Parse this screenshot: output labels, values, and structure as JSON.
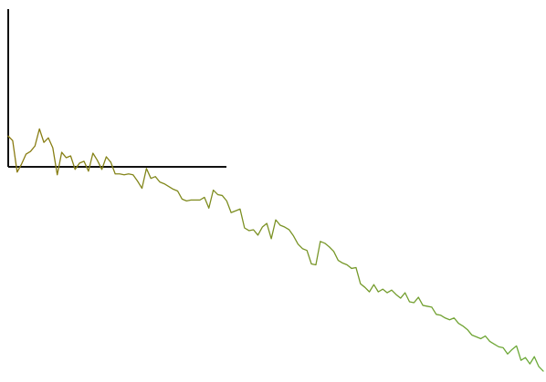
{
  "chart_data": {
    "type": "line",
    "title": "",
    "xlabel": "",
    "ylabel": "",
    "grid": false,
    "legend": "none",
    "xlim": [
      0,
      240
    ],
    "ylim": [
      -230,
      175
    ],
    "colors": {
      "axis": "#111111",
      "gradient_start": "#8a7a10",
      "gradient_end": "#6aaa38"
    },
    "series": [
      {
        "x": [
          0,
          2,
          4,
          6,
          8,
          10,
          12,
          14,
          16,
          18,
          20,
          22,
          24,
          26,
          28,
          30,
          32,
          34,
          36,
          38,
          40,
          42,
          44,
          46,
          48,
          50,
          52,
          54,
          56,
          58,
          60,
          62,
          64,
          66,
          68,
          70,
          72,
          74,
          76,
          78,
          80,
          82,
          84,
          86,
          88,
          90,
          92,
          94,
          96,
          98,
          100,
          102,
          104,
          106,
          108,
          110,
          112,
          114,
          116,
          118,
          120,
          122,
          124,
          126,
          128,
          130,
          132,
          134,
          136,
          138,
          140,
          142,
          144,
          146,
          148,
          150,
          152,
          154,
          156,
          158,
          160,
          162,
          164,
          166,
          168,
          170,
          172,
          174,
          176,
          178,
          180,
          182,
          184,
          186,
          188,
          190,
          192,
          194,
          196,
          198,
          200,
          202,
          204,
          206,
          208,
          210,
          212,
          214,
          216,
          218,
          220,
          222,
          224,
          226,
          228,
          230,
          232,
          234,
          236,
          238,
          240
        ],
        "values": [
          34,
          29,
          -6,
          3,
          14,
          17,
          23,
          42,
          27,
          32,
          21,
          -9,
          16,
          10,
          12,
          -3,
          4,
          6,
          -5,
          15,
          7,
          -3,
          11,
          5,
          -8,
          -8,
          -9,
          -8,
          -9,
          -16,
          -24,
          -2,
          -13,
          -11,
          -17,
          -19,
          -22,
          -25,
          -27,
          -36,
          -38,
          -37,
          -37,
          -37,
          -34,
          -46,
          -26,
          -31,
          -32,
          -38,
          -51,
          -49,
          -47,
          -68,
          -71,
          -70,
          -76,
          -67,
          -63,
          -80,
          -59,
          -65,
          -67,
          -70,
          -77,
          -86,
          -91,
          -93,
          -108,
          -109,
          -83,
          -85,
          -89,
          -94,
          -104,
          -107,
          -109,
          -113,
          -112,
          -130,
          -134,
          -139,
          -131,
          -139,
          -136,
          -140,
          -137,
          -142,
          -146,
          -140,
          -150,
          -151,
          -145,
          -154,
          -155,
          -156,
          -164,
          -165,
          -168,
          -170,
          -168,
          -174,
          -177,
          -181,
          -187,
          -189,
          -191,
          -188,
          -194,
          -197,
          -200,
          -201,
          -208,
          -203,
          -199,
          -215,
          -212,
          -219,
          -211,
          -222,
          -227
        ]
      }
    ]
  }
}
